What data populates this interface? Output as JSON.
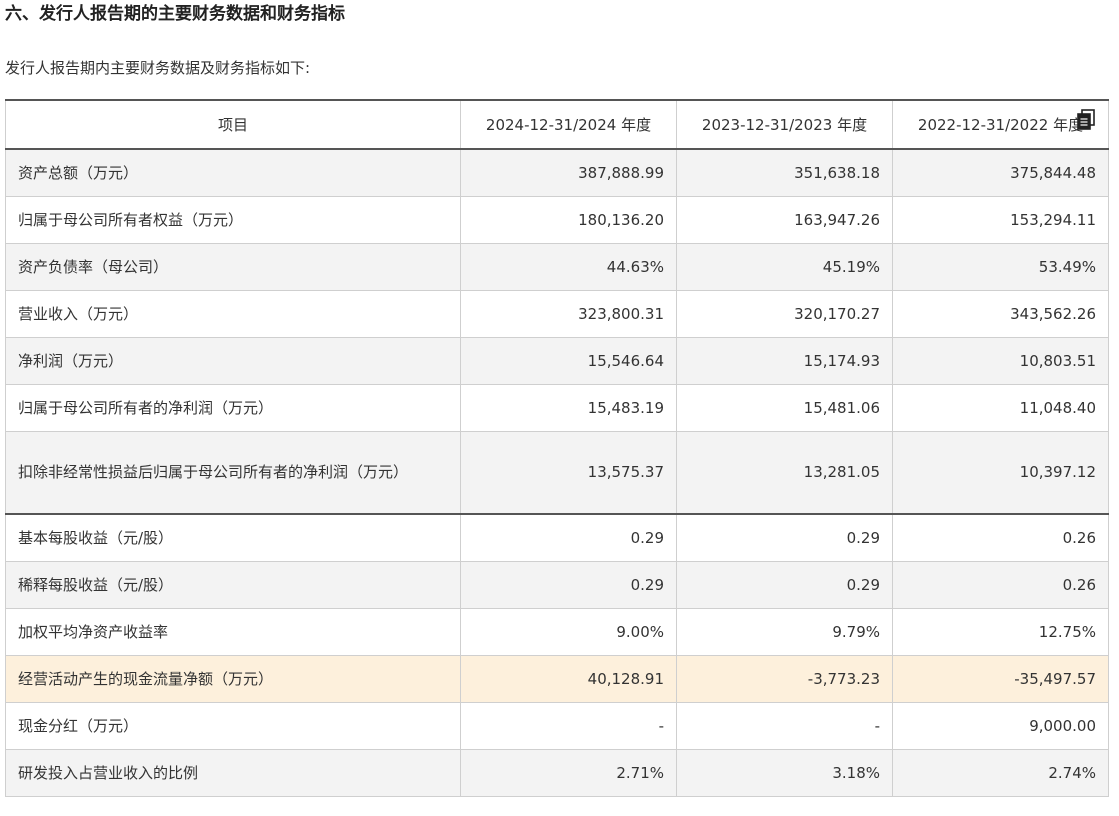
{
  "section_title": "六、发行人报告期的主要财务数据和财务指标",
  "intro": "发行人报告期内主要财务数据及财务指标如下:",
  "table": {
    "headers": [
      "项目",
      "2024-12-31/2024 年度",
      "2023-12-31/2023 年度",
      "2022-12-31/2022 年度"
    ],
    "rows": [
      {
        "label": "资产总额（万元）",
        "values": [
          "387,888.99",
          "351,638.18",
          "375,844.48"
        ]
      },
      {
        "label": "归属于母公司所有者权益（万元）",
        "values": [
          "180,136.20",
          "163,947.26",
          "153,294.11"
        ]
      },
      {
        "label": "资产负债率（母公司）",
        "values": [
          "44.63%",
          "45.19%",
          "53.49%"
        ]
      },
      {
        "label": "营业收入（万元）",
        "values": [
          "323,800.31",
          "320,170.27",
          "343,562.26"
        ]
      },
      {
        "label": "净利润（万元）",
        "values": [
          "15,546.64",
          "15,174.93",
          "10,803.51"
        ]
      },
      {
        "label": "归属于母公司所有者的净利润（万元）",
        "values": [
          "15,483.19",
          "15,481.06",
          "11,048.40"
        ]
      },
      {
        "label": "扣除非经常性损益后归属于母公司所有者的净利润（万元）",
        "values": [
          "13,575.37",
          "13,281.05",
          "10,397.12"
        ]
      },
      {
        "label": "基本每股收益（元/股）",
        "values": [
          "0.29",
          "0.29",
          "0.26"
        ]
      },
      {
        "label": "稀释每股收益（元/股）",
        "values": [
          "0.29",
          "0.29",
          "0.26"
        ]
      },
      {
        "label": "加权平均净资产收益率",
        "values": [
          "9.00%",
          "9.79%",
          "12.75%"
        ]
      },
      {
        "label": "经营活动产生的现金流量净额（万元）",
        "values": [
          "40,128.91",
          "-3,773.23",
          "-35,497.57"
        ]
      },
      {
        "label": "现金分红（万元）",
        "values": [
          "-",
          "-",
          "9,000.00"
        ]
      },
      {
        "label": "研发投入占营业收入的比例",
        "values": [
          "2.71%",
          "3.18%",
          "2.74%"
        ]
      }
    ]
  },
  "icons": {
    "copy": "copy-icon"
  }
}
